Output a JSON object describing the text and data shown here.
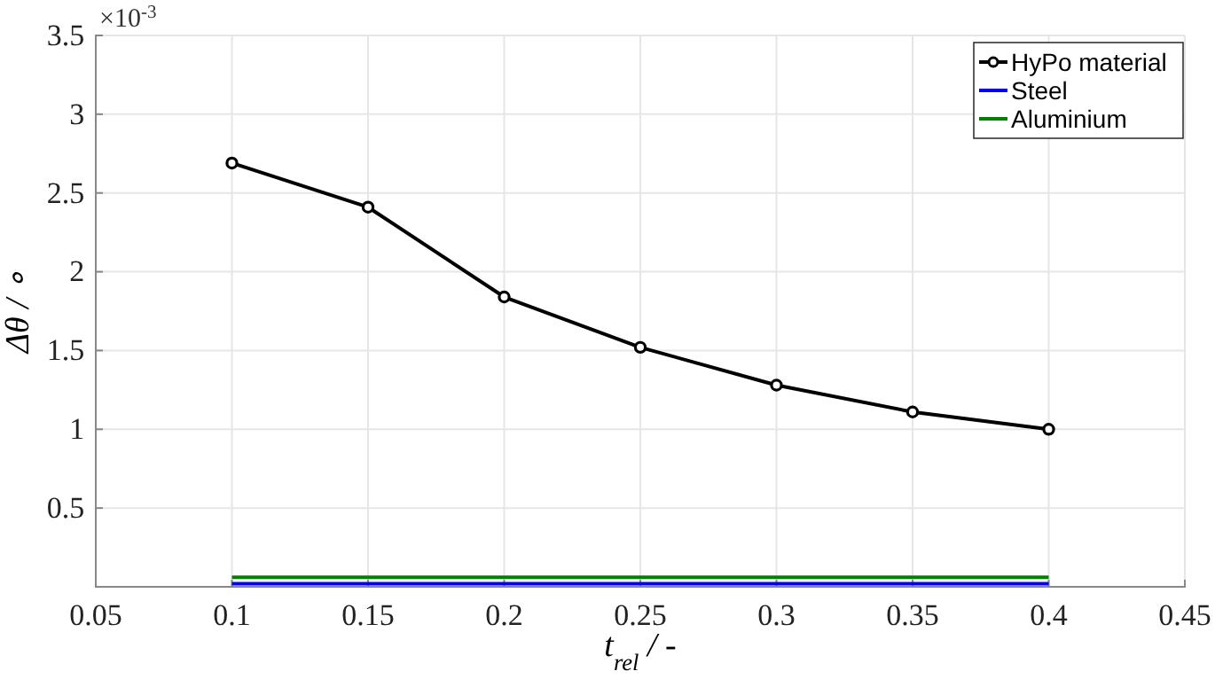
{
  "chart_data": {
    "type": "line",
    "xlabel": "t$_{rel}$ / -",
    "ylabel": "Δθ / ∘",
    "annotations": [
      "×10$^{-3}$"
    ],
    "x": [
      0.1,
      0.15,
      0.2,
      0.25,
      0.3,
      0.35,
      0.4
    ],
    "series": [
      {
        "name": "HyPo material",
        "color": "#000000",
        "marker": "circle",
        "values": [
          2.69,
          2.41,
          1.84,
          1.52,
          1.28,
          1.11,
          1.0
        ]
      },
      {
        "name": "Steel",
        "color": "#0000ff",
        "marker": "none",
        "values": [
          0.02,
          0.02,
          0.02,
          0.02,
          0.02,
          0.02,
          0.02
        ]
      },
      {
        "name": "Aluminium",
        "color": "#008000",
        "marker": "none",
        "values": [
          0.06,
          0.06,
          0.06,
          0.06,
          0.06,
          0.06,
          0.06
        ]
      }
    ],
    "xlim": [
      0.05,
      0.45
    ],
    "xticks": [
      0.05,
      0.1,
      0.15,
      0.2,
      0.25,
      0.3,
      0.35,
      0.4,
      0.45
    ],
    "ylim": [
      0,
      3.5
    ],
    "yticks": [
      0.5,
      1,
      1.5,
      2,
      2.5,
      3,
      3.5
    ],
    "grid": true,
    "legend": "top right",
    "line_style": "solid"
  }
}
